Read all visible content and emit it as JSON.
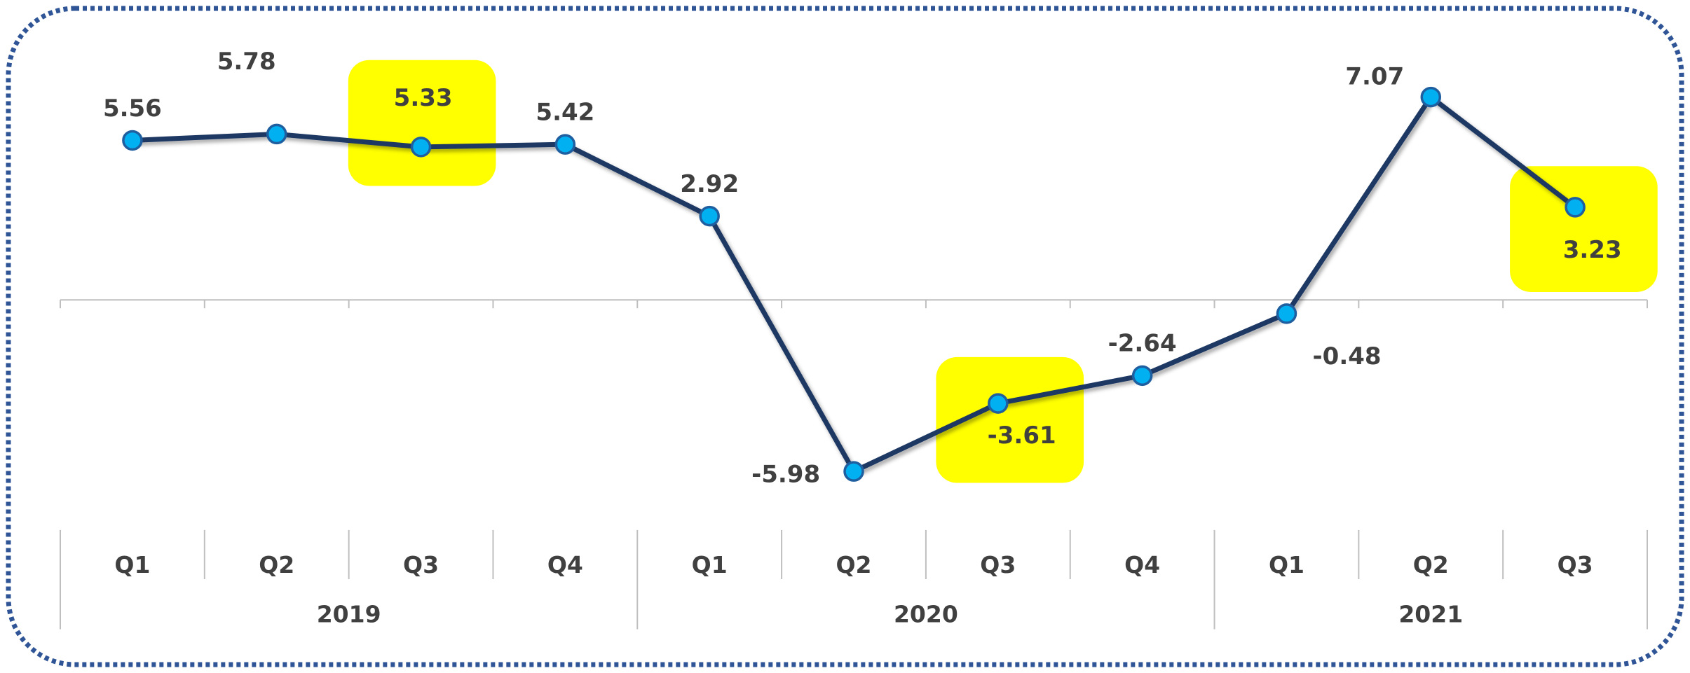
{
  "chart_data": {
    "type": "line",
    "categories": [
      "Q1",
      "Q2",
      "Q3",
      "Q4",
      "Q1",
      "Q2",
      "Q3",
      "Q4",
      "Q1",
      "Q2",
      "Q3"
    ],
    "groups": [
      {
        "label": "2019",
        "span": 4
      },
      {
        "label": "2020",
        "span": 4
      },
      {
        "label": "2021",
        "span": 3
      }
    ],
    "series": [
      {
        "color": "#1f3864",
        "marker_color": "#00b0f0",
        "values": [
          5.56,
          5.78,
          5.33,
          5.42,
          2.92,
          -5.98,
          -3.61,
          -2.64,
          -0.48,
          7.07,
          3.23
        ]
      }
    ],
    "highlight": [
      2,
      6,
      10
    ],
    "highlight_color": "#ffff00"
  }
}
